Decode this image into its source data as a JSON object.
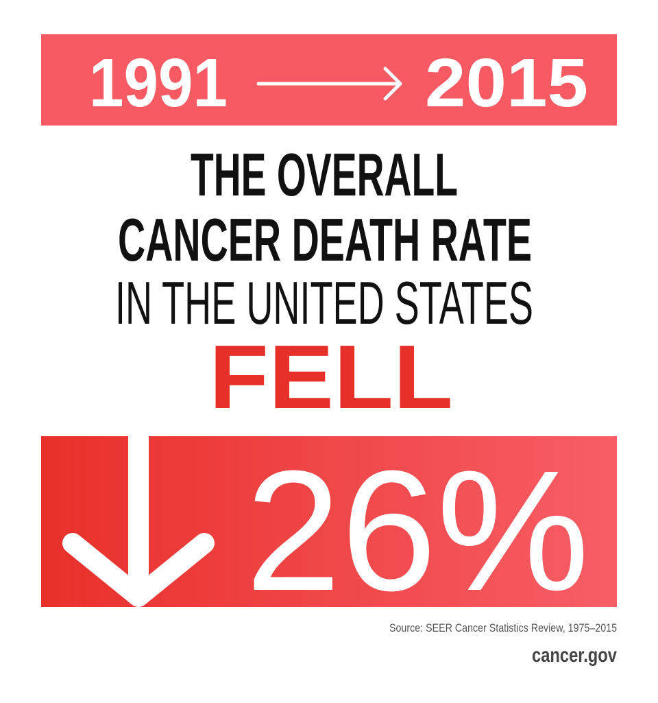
{
  "headline": {
    "start_year": "1991",
    "end_year": "2015"
  },
  "statement": {
    "line1": "THE OVERALL",
    "line2": "CANCER DEATH RATE",
    "line3": "IN THE UNITED STATES",
    "verb": "FELL"
  },
  "change": {
    "value": "26%"
  },
  "footer": {
    "source": "Source: SEER Cancer Statistics Review, 1975–2015",
    "site": "cancer.gov"
  }
}
